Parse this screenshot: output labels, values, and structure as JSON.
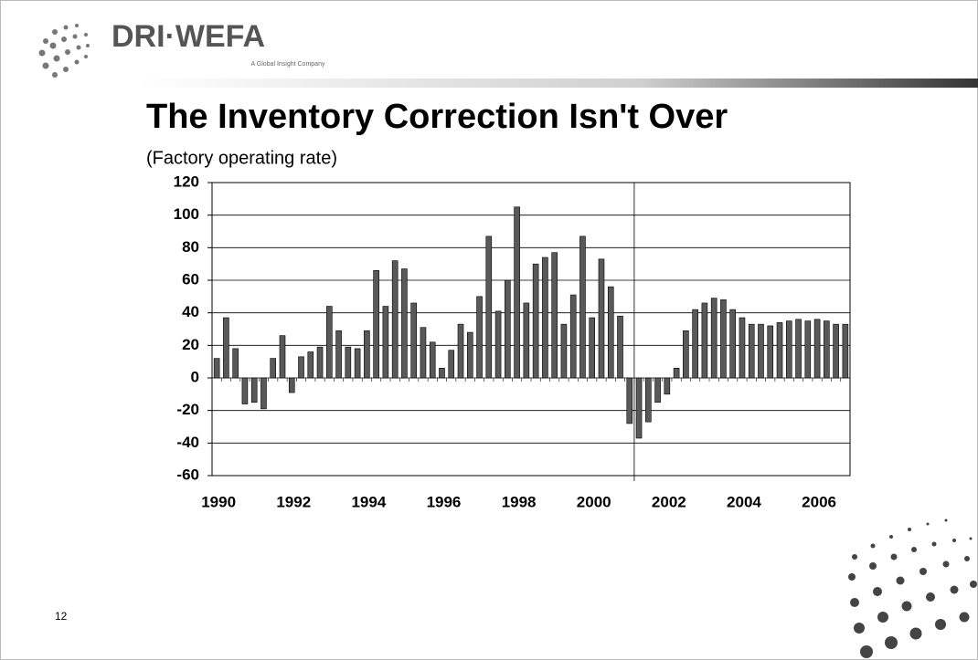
{
  "logo": {
    "name": "DRI·WEFA",
    "tagline": "A Global Insight Company"
  },
  "slide_number": "12",
  "chart_data": {
    "type": "bar",
    "title": "The Inventory Correction Isn't Over",
    "subtitle": "(Factory operating rate)",
    "categories": [
      "1990",
      null,
      null,
      null,
      null,
      null,
      null,
      null,
      "1992",
      null,
      null,
      null,
      null,
      null,
      null,
      null,
      "1994",
      null,
      null,
      null,
      null,
      null,
      null,
      null,
      "1996",
      null,
      null,
      null,
      null,
      null,
      null,
      null,
      "1998",
      null,
      null,
      null,
      null,
      null,
      null,
      null,
      "2000",
      null,
      null,
      null,
      null,
      null,
      null,
      null,
      "2002",
      null,
      null,
      null,
      null,
      null,
      null,
      null,
      "2004",
      null,
      null,
      null,
      null,
      null,
      null,
      null,
      "2006",
      null,
      null,
      null
    ],
    "values": [
      12,
      37,
      18,
      -16,
      -15,
      -19,
      12,
      26,
      -9,
      13,
      16,
      19,
      44,
      29,
      19,
      18,
      29,
      66,
      44,
      72,
      67,
      46,
      31,
      22,
      6,
      17,
      33,
      28,
      50,
      87,
      41,
      60,
      105,
      46,
      70,
      74,
      77,
      33,
      51,
      87,
      37,
      73,
      56,
      38,
      -28,
      -37,
      -27,
      -15,
      -10,
      6,
      29,
      42,
      46,
      49,
      48,
      42,
      37,
      33,
      33,
      32,
      34,
      35,
      36,
      35,
      36,
      35,
      33,
      33
    ],
    "color": "#595959",
    "ylim": [
      -60,
      120
    ],
    "yticks": [
      -60,
      -40,
      -20,
      0,
      20,
      40,
      60,
      80,
      100,
      120
    ],
    "grid": true
  }
}
